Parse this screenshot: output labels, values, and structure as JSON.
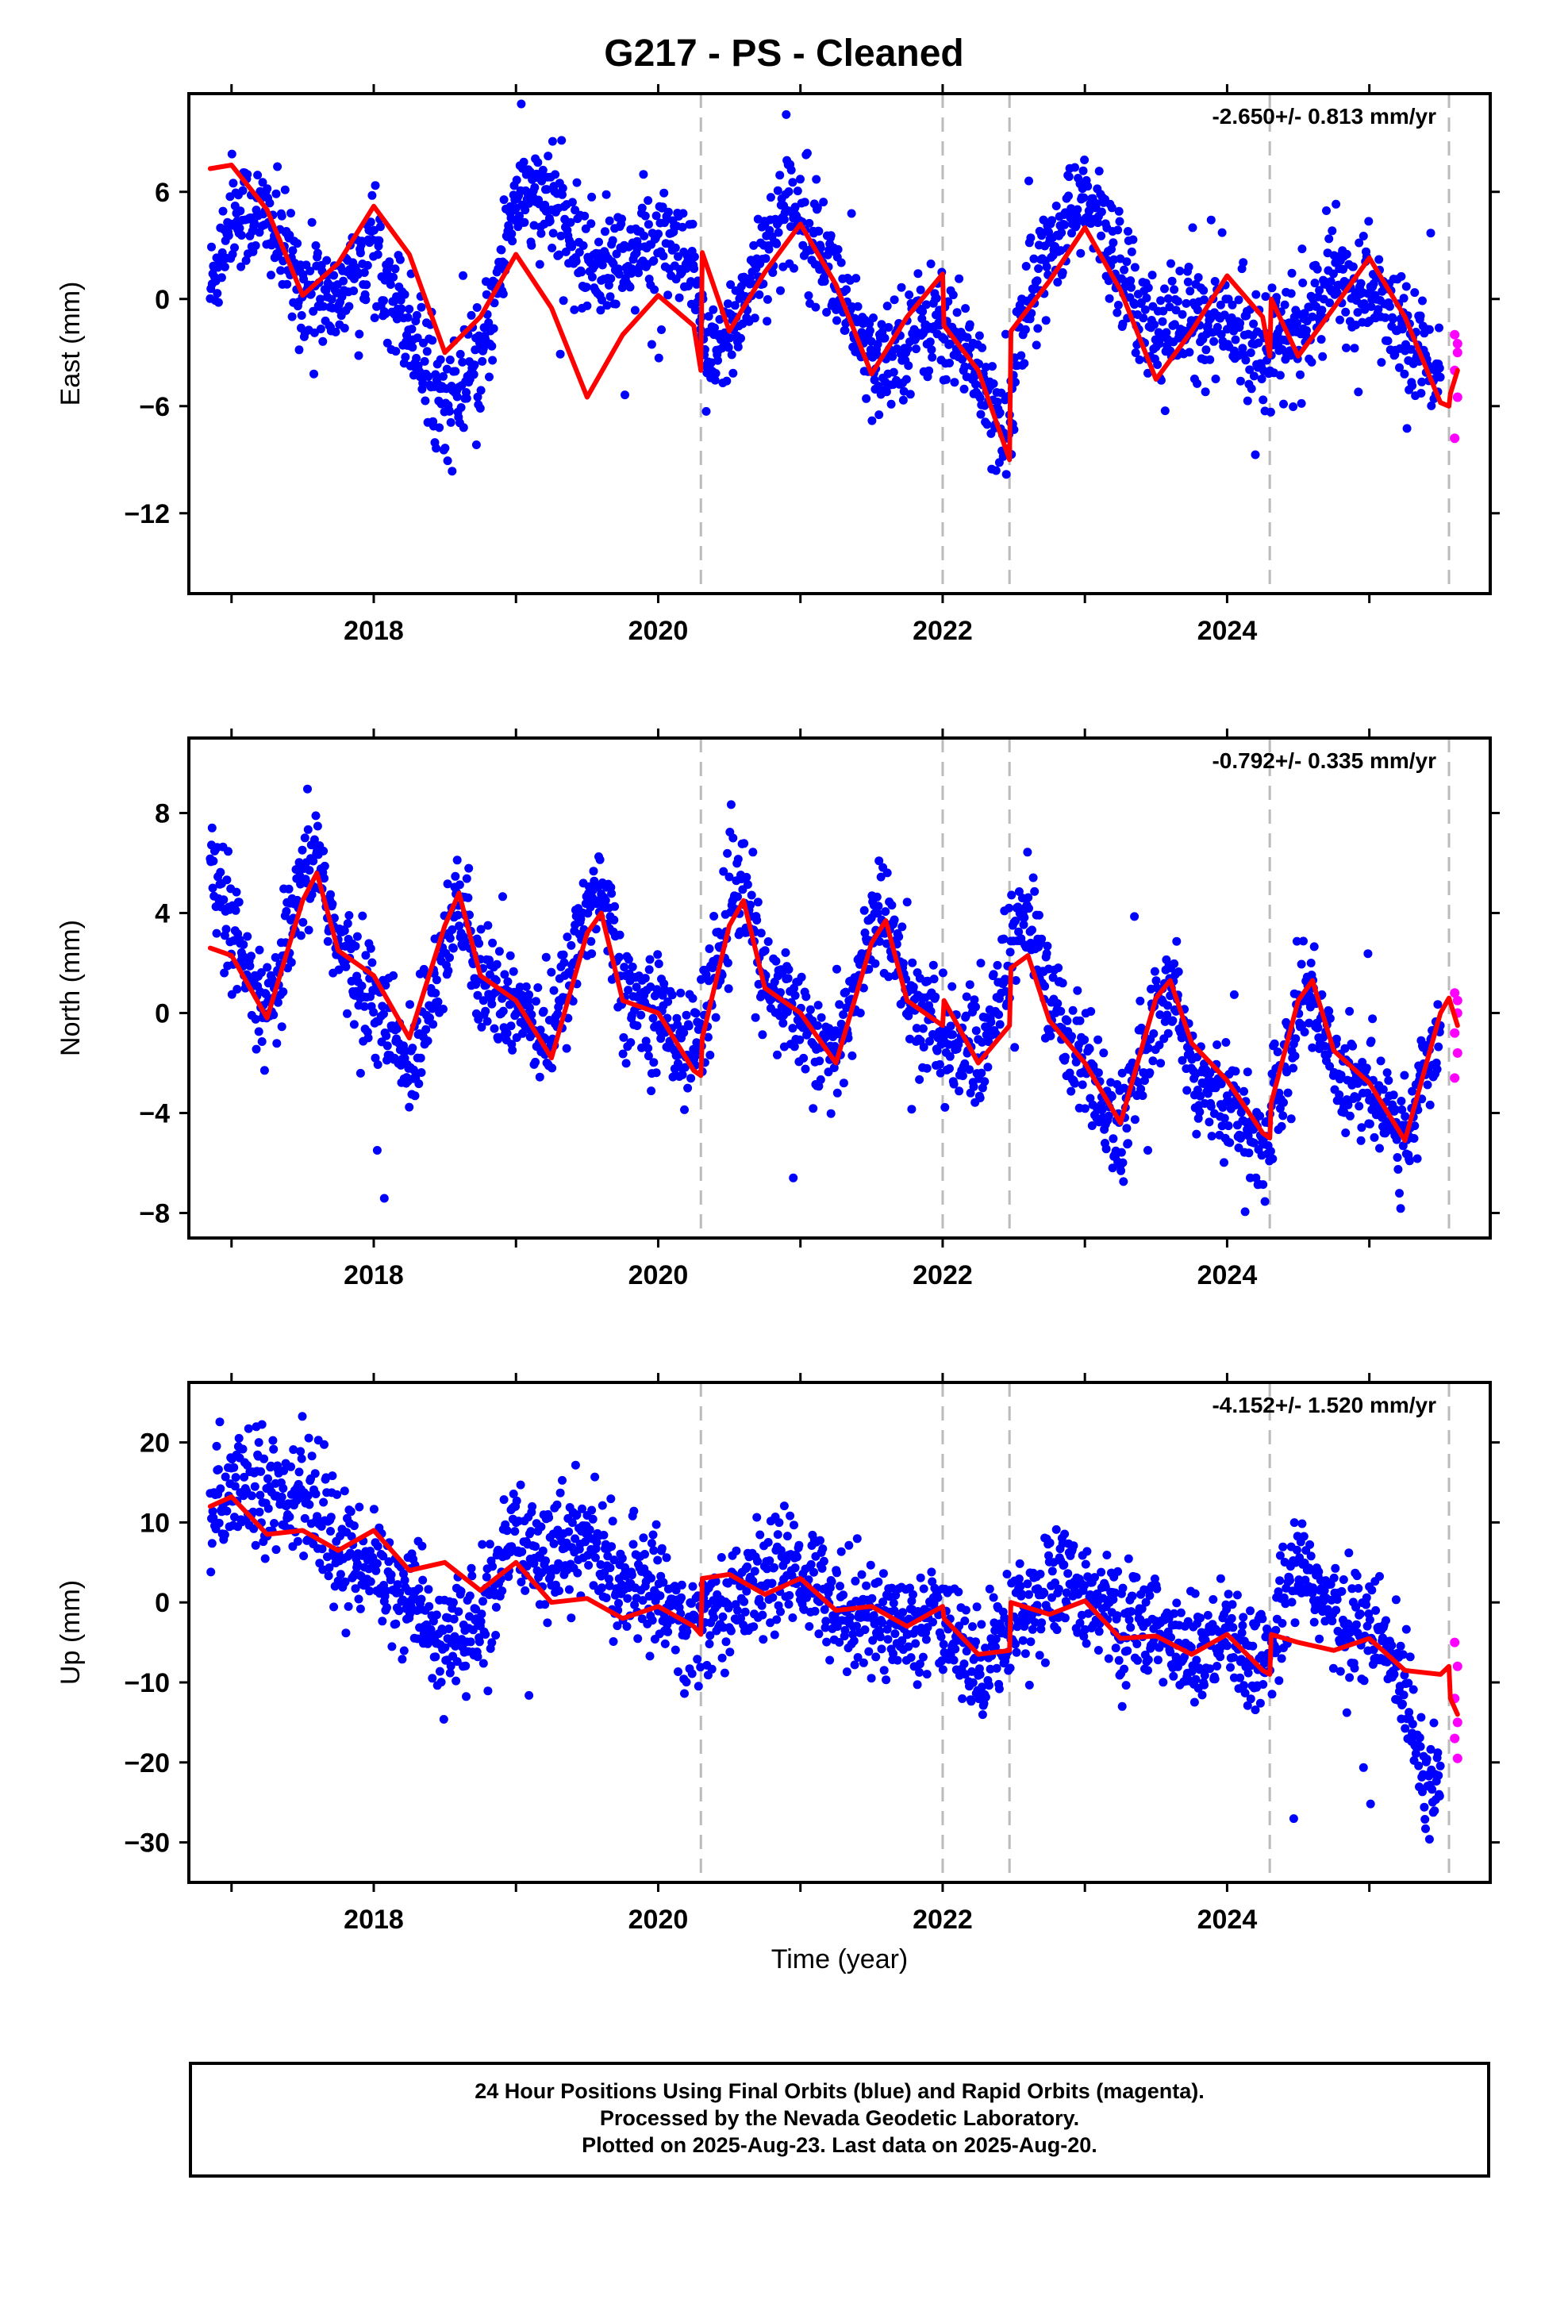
{
  "title": "G217  - PS - Cleaned",
  "xlabel": "Time (year)",
  "x_ticks": [
    2018,
    2020,
    2022,
    2024
  ],
  "x_range": [
    2016.7,
    2025.85
  ],
  "event_lines": [
    2020.3,
    2022.0,
    2022.47,
    2024.3,
    2025.56
  ],
  "colors": {
    "final": "#0000ff",
    "rapid": "#ff00ff",
    "model": "#ff0000",
    "event": "#bbbbbb"
  },
  "footer": [
    "24 Hour Positions Using Final Orbits (blue) and Rapid Orbits (magenta).",
    "Processed by the Nevada Geodetic Laboratory.",
    "Plotted on 2025-Aug-23. Last data on 2025-Aug-20."
  ],
  "chart_data": [
    {
      "type": "scatter",
      "component": "East",
      "ylabel": "East (mm)",
      "rate": "-2.650+/- 0.813 mm/yr",
      "ylim": [
        -16.5,
        11.5
      ],
      "yticks": [
        -12,
        -6,
        0,
        6
      ],
      "model": {
        "x": [
          2016.85,
          2017.0,
          2017.25,
          2017.5,
          2017.75,
          2018.0,
          2018.25,
          2018.5,
          2018.75,
          2019.0,
          2019.25,
          2019.5,
          2019.75,
          2020.0,
          2020.25,
          2020.3,
          2020.31,
          2020.5,
          2020.75,
          2021.0,
          2021.25,
          2021.5,
          2021.75,
          2022.0,
          2022.01,
          2022.25,
          2022.47,
          2022.48,
          2022.75,
          2023.0,
          2023.25,
          2023.5,
          2023.75,
          2024.0,
          2024.25,
          2024.3,
          2024.31,
          2024.5,
          2024.75,
          2025.0,
          2025.25,
          2025.5,
          2025.56,
          2025.57,
          2025.62
        ],
        "y": [
          7.3,
          7.5,
          5.0,
          0.2,
          2.0,
          5.2,
          2.5,
          -3.0,
          -1.0,
          2.5,
          -0.5,
          -5.5,
          -2.0,
          0.2,
          -1.5,
          -4.0,
          2.6,
          -1.8,
          1.5,
          4.2,
          0.8,
          -4.2,
          -1.0,
          1.4,
          -1.5,
          -4.0,
          -9.0,
          -1.8,
          1.0,
          4.0,
          0.5,
          -4.5,
          -1.8,
          1.3,
          -1.0,
          -3.2,
          0.0,
          -3.2,
          -0.5,
          2.3,
          -1.0,
          -5.8,
          -6.0,
          -5.3,
          -4.0
        ]
      },
      "final_anchors": {
        "x": [
          2016.85,
          2017.0,
          2017.25,
          2017.5,
          2017.75,
          2018.0,
          2018.25,
          2018.5,
          2018.75,
          2019.0,
          2019.25,
          2019.5,
          2019.75,
          2020.0,
          2020.25,
          2020.35,
          2020.5,
          2020.75,
          2021.0,
          2021.25,
          2021.5,
          2021.75,
          2022.0,
          2022.25,
          2022.45,
          2022.55,
          2022.75,
          2023.0,
          2023.25,
          2023.5,
          2023.75,
          2024.0,
          2024.25,
          2024.5,
          2024.75,
          2025.0,
          2025.25,
          2025.5
        ],
        "y": [
          0.5,
          5.0,
          4.5,
          0.5,
          0.0,
          3.0,
          -1.5,
          -6.0,
          -4.0,
          6.0,
          5.0,
          2.0,
          2.0,
          3.5,
          1.0,
          -4.0,
          -2.0,
          3.0,
          5.5,
          1.0,
          -4.0,
          -2.0,
          -1.0,
          -4.0,
          -7.5,
          -1.5,
          3.0,
          5.5,
          2.0,
          -2.0,
          -1.0,
          -1.5,
          -2.5,
          -2.0,
          1.0,
          0.5,
          -2.0,
          -4.0
        ]
      },
      "rapid": [
        -2.0,
        -3.0,
        -4.0,
        -5.5,
        -7.8,
        -2.5
      ]
    },
    {
      "type": "scatter",
      "component": "North",
      "ylabel": "North (mm)",
      "rate": "-0.792+/- 0.335 mm/yr",
      "ylim": [
        -9.0,
        11.0
      ],
      "yticks": [
        -8,
        -4,
        0,
        4,
        8
      ],
      "model": {
        "x": [
          2016.85,
          2017.0,
          2017.25,
          2017.5,
          2017.6,
          2017.75,
          2018.0,
          2018.25,
          2018.5,
          2018.6,
          2018.75,
          2019.0,
          2019.25,
          2019.5,
          2019.6,
          2019.75,
          2020.0,
          2020.25,
          2020.3,
          2020.31,
          2020.5,
          2020.6,
          2020.75,
          2021.0,
          2021.25,
          2021.5,
          2021.6,
          2021.75,
          2022.0,
          2022.01,
          2022.25,
          2022.47,
          2022.48,
          2022.6,
          2022.75,
          2023.0,
          2023.25,
          2023.5,
          2023.6,
          2023.75,
          2024.0,
          2024.25,
          2024.3,
          2024.31,
          2024.5,
          2024.6,
          2024.75,
          2025.0,
          2025.25,
          2025.5,
          2025.56,
          2025.62
        ],
        "y": [
          2.6,
          2.3,
          -0.2,
          4.5,
          5.6,
          2.5,
          1.5,
          -1.0,
          3.5,
          4.8,
          1.5,
          0.5,
          -1.8,
          3.2,
          4.0,
          0.5,
          0.0,
          -2.3,
          -2.5,
          -1.0,
          3.5,
          4.5,
          1.0,
          0.0,
          -2.0,
          2.8,
          3.7,
          0.5,
          -0.5,
          0.5,
          -2.0,
          -0.5,
          1.8,
          2.3,
          -0.3,
          -2.0,
          -4.4,
          0.6,
          1.3,
          -1.2,
          -2.7,
          -4.8,
          -5.0,
          -3.6,
          0.5,
          1.3,
          -1.5,
          -2.8,
          -5.1,
          0.0,
          0.6,
          -0.5
        ]
      },
      "final_anchors": {
        "x": [
          2016.85,
          2017.0,
          2017.25,
          2017.5,
          2017.6,
          2017.75,
          2018.0,
          2018.25,
          2018.5,
          2018.6,
          2018.75,
          2019.0,
          2019.25,
          2019.5,
          2019.6,
          2019.75,
          2020.0,
          2020.25,
          2020.5,
          2020.6,
          2020.75,
          2021.0,
          2021.25,
          2021.5,
          2021.6,
          2021.75,
          2022.0,
          2022.25,
          2022.5,
          2022.6,
          2022.75,
          2023.0,
          2023.25,
          2023.5,
          2023.6,
          2023.75,
          2024.0,
          2024.25,
          2024.5,
          2024.6,
          2024.75,
          2025.0,
          2025.25,
          2025.5
        ],
        "y": [
          6.0,
          3.0,
          -0.5,
          5.0,
          6.5,
          2.5,
          0.5,
          -2.5,
          3.0,
          4.5,
          1.0,
          0.5,
          -1.0,
          4.0,
          5.5,
          1.0,
          0.0,
          -1.5,
          4.0,
          5.0,
          1.0,
          0.0,
          -2.0,
          3.5,
          4.0,
          0.5,
          -1.0,
          -2.0,
          3.0,
          4.0,
          0.5,
          -2.0,
          -5.0,
          0.0,
          1.0,
          -2.0,
          -3.5,
          -5.5,
          0.0,
          1.0,
          -2.0,
          -3.0,
          -5.0,
          -1.0
        ]
      },
      "rapid": [
        0.8,
        0.0,
        -0.8,
        -1.6,
        -2.6,
        0.5
      ]
    },
    {
      "type": "scatter",
      "component": "Up",
      "ylabel": "Up (mm)",
      "rate": "-4.152+/- 1.520 mm/yr",
      "ylim": [
        -35.0,
        27.5
      ],
      "yticks": [
        -30,
        -20,
        -10,
        0,
        10,
        20
      ],
      "model": {
        "x": [
          2016.85,
          2017.0,
          2017.25,
          2017.5,
          2017.75,
          2018.0,
          2018.25,
          2018.5,
          2018.75,
          2019.0,
          2019.25,
          2019.5,
          2019.75,
          2020.0,
          2020.25,
          2020.3,
          2020.31,
          2020.5,
          2020.75,
          2021.0,
          2021.25,
          2021.5,
          2021.75,
          2022.0,
          2022.01,
          2022.25,
          2022.47,
          2022.48,
          2022.75,
          2023.0,
          2023.25,
          2023.5,
          2023.75,
          2024.0,
          2024.25,
          2024.3,
          2024.31,
          2024.5,
          2024.75,
          2025.0,
          2025.25,
          2025.5,
          2025.56,
          2025.57,
          2025.62
        ],
        "y": [
          12.0,
          13.2,
          8.5,
          9.0,
          6.5,
          9.0,
          4.0,
          5.0,
          1.5,
          5.0,
          0.0,
          0.5,
          -2.0,
          -0.5,
          -3.0,
          -4.0,
          3.0,
          3.5,
          1.0,
          3.0,
          -1.0,
          -0.5,
          -3.0,
          -0.5,
          -2.0,
          -6.5,
          -6.0,
          0.0,
          -1.5,
          0.2,
          -4.5,
          -4.2,
          -6.5,
          -4.0,
          -8.5,
          -9.0,
          -4.0,
          -5.0,
          -6.0,
          -4.5,
          -8.5,
          -9.0,
          -8.0,
          -12.0,
          -14.0
        ]
      },
      "final_anchors": {
        "x": [
          2016.85,
          2017.0,
          2017.25,
          2017.5,
          2017.75,
          2018.0,
          2018.25,
          2018.5,
          2018.75,
          2019.0,
          2019.25,
          2019.5,
          2019.75,
          2020.0,
          2020.25,
          2020.5,
          2020.75,
          2021.0,
          2021.25,
          2021.5,
          2021.75,
          2022.0,
          2022.25,
          2022.5,
          2022.75,
          2023.0,
          2023.25,
          2023.5,
          2023.75,
          2024.0,
          2024.25,
          2024.5,
          2024.75,
          2025.0,
          2025.25,
          2025.4,
          2025.5
        ],
        "y": [
          10.0,
          16.0,
          14.0,
          13.0,
          6.0,
          5.0,
          0.0,
          -5.0,
          -3.0,
          8.0,
          7.0,
          8.0,
          2.0,
          2.0,
          -4.0,
          0.0,
          3.0,
          4.0,
          0.0,
          -2.0,
          -3.0,
          -3.0,
          -8.0,
          -2.0,
          2.0,
          2.0,
          -3.0,
          -3.0,
          -7.0,
          -5.0,
          -8.0,
          6.0,
          -2.0,
          -3.0,
          -10.0,
          -22.0,
          -20.0
        ]
      },
      "rapid": [
        -5.0,
        -8.0,
        -12.0,
        -15.0,
        -17.0,
        -19.5
      ]
    }
  ]
}
